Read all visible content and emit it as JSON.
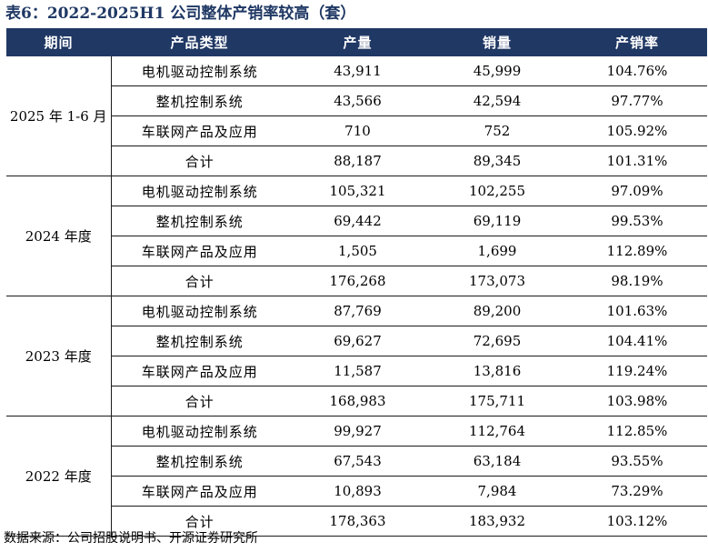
{
  "title": "表6：2022-2025H1 公司整体产销率较高（套）",
  "headers": [
    "期间",
    "产品类型",
    "产量",
    "销量",
    "产销率"
  ],
  "groups": [
    {
      "period": "2025 年 1-6 月",
      "rows": [
        {
          "product": "电机驱动控制系统",
          "production": "43,911",
          "sales": "45,999",
          "ratio": "104.76%"
        },
        {
          "product": "整机控制系统",
          "production": "43,566",
          "sales": "42,594",
          "ratio": "97.77%"
        },
        {
          "product": "车联网产品及应用",
          "production": "710",
          "sales": "752",
          "ratio": "105.92%"
        },
        {
          "product": "合计",
          "production": "88,187",
          "sales": "89,345",
          "ratio": "101.31%"
        }
      ]
    },
    {
      "period": "2024 年度",
      "rows": [
        {
          "product": "电机驱动控制系统",
          "production": "105,321",
          "sales": "102,255",
          "ratio": "97.09%"
        },
        {
          "product": "整机控制系统",
          "production": "69,442",
          "sales": "69,119",
          "ratio": "99.53%"
        },
        {
          "product": "车联网产品及应用",
          "production": "1,505",
          "sales": "1,699",
          "ratio": "112.89%"
        },
        {
          "product": "合计",
          "production": "176,268",
          "sales": "173,073",
          "ratio": "98.19%"
        }
      ]
    },
    {
      "period": "2023 年度",
      "rows": [
        {
          "product": "电机驱动控制系统",
          "production": "87,769",
          "sales": "89,200",
          "ratio": "101.63%"
        },
        {
          "product": "整机控制系统",
          "production": "69,627",
          "sales": "72,695",
          "ratio": "104.41%"
        },
        {
          "product": "车联网产品及应用",
          "production": "11,587",
          "sales": "13,816",
          "ratio": "119.24%"
        },
        {
          "product": "合计",
          "production": "168,983",
          "sales": "175,711",
          "ratio": "103.98%"
        }
      ]
    },
    {
      "period": "2022 年度",
      "rows": [
        {
          "product": "电机驱动控制系统",
          "production": "99,927",
          "sales": "112,764",
          "ratio": "112.85%"
        },
        {
          "product": "整机控制系统",
          "production": "67,543",
          "sales": "63,184",
          "ratio": "93.55%"
        },
        {
          "product": "车联网产品及应用",
          "production": "10,893",
          "sales": "7,984",
          "ratio": "73.29%"
        },
        {
          "product": "合计",
          "production": "178,363",
          "sales": "183,932",
          "ratio": "103.12%"
        }
      ]
    }
  ],
  "source": "数据来源：公司招股说明书、开源证券研究所"
}
